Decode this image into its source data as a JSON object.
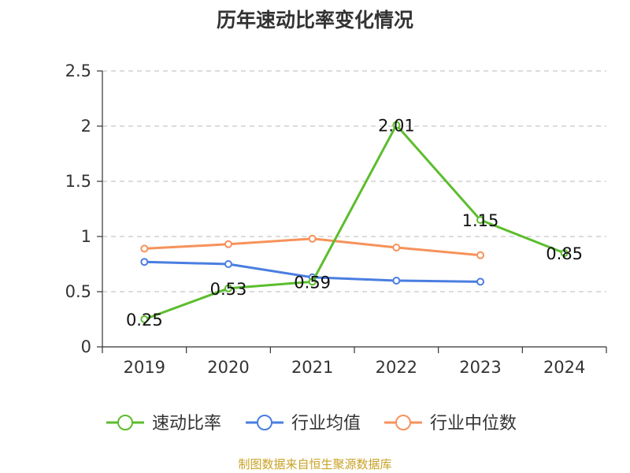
{
  "chart_data": {
    "type": "line",
    "title": "历年速动比率变化情况",
    "categories": [
      "2019",
      "2020",
      "2021",
      "2022",
      "2023",
      "2024"
    ],
    "y_ticks": [
      "0",
      "0.5",
      "1",
      "1.5",
      "2",
      "2.5"
    ],
    "ylim": [
      0,
      2.5
    ],
    "grid": true,
    "legend_position": "bottom",
    "series": [
      {
        "name": "速动比率",
        "color": "#5cbd2e",
        "values": [
          0.25,
          0.53,
          0.59,
          2.01,
          1.15,
          0.85
        ],
        "data_labels": [
          "0.25",
          "0.53",
          "0.59",
          "2.01",
          "1.15",
          "0.85"
        ]
      },
      {
        "name": "行业均值",
        "color": "#4a7ee0",
        "values": [
          0.77,
          0.75,
          0.63,
          0.6,
          0.59,
          null
        ]
      },
      {
        "name": "行业中位数",
        "color": "#f6925a",
        "values": [
          0.89,
          0.93,
          0.98,
          0.9,
          0.83,
          null
        ]
      }
    ]
  },
  "source_note": "制图数据来自恒生聚源数据库"
}
